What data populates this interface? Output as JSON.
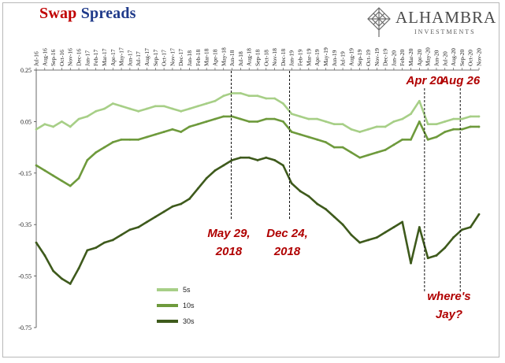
{
  "header": {
    "title_part1": "Swap",
    "title_part2": "Spreads",
    "logo_name": "ALHAMBRA",
    "logo_sub": "INVESTMENTS",
    "logo_icon": "alhambra-star-icon"
  },
  "colors": {
    "title_red": "#c00000",
    "title_blue": "#1f3a8a",
    "annotation_red": "#b00000",
    "series_5s": "#a7cf87",
    "series_10s": "#6e9a3c",
    "series_30s": "#3e5a1c"
  },
  "chart_data": {
    "type": "line",
    "title": "Swap Spreads",
    "x_tick_labels": [
      "Jul-16",
      "Aug-16",
      "Sep-16",
      "Oct-16",
      "Nov-16",
      "Dec-16",
      "Jan-17",
      "Feb-17",
      "Mar-17",
      "Apr-17",
      "May-17",
      "Jun-17",
      "Jul-17",
      "Aug-17",
      "Sep-17",
      "Oct-17",
      "Nov-17",
      "Dec-17",
      "Jan-18",
      "Feb-18",
      "Mar-18",
      "Apr-18",
      "May-18",
      "Jun-18",
      "Jul-18",
      "Aug-18",
      "Sep-18",
      "Oct-18",
      "Nov-18",
      "Dec-18",
      "Jan-19",
      "Feb-19",
      "Mar-19",
      "Apr-19",
      "May-19",
      "Jun-19",
      "Jul-19",
      "Aug-19",
      "Sep-19",
      "Oct-19",
      "Nov-19",
      "Dec-19",
      "Jan-20",
      "Feb-20",
      "Mar-20",
      "Apr-20",
      "May-20",
      "Jun-20",
      "Jul-20",
      "Aug-20",
      "Sep-20",
      "Oct-20",
      "Nov-20"
    ],
    "ylim": [
      -0.75,
      0.25
    ],
    "y_ticks": [
      "0.25",
      "0.05",
      "-0.15",
      "-0.35",
      "-0.55",
      "-0.75"
    ],
    "y_tick_values": [
      0.25,
      0.05,
      -0.15,
      -0.35,
      -0.55,
      -0.75
    ],
    "x": [
      "Jul-16",
      "Aug-16",
      "Sep-16",
      "Oct-16",
      "Nov-16",
      "Dec-16",
      "Jan-17",
      "Feb-17",
      "Mar-17",
      "Apr-17",
      "May-17",
      "Jun-17",
      "Jul-17",
      "Aug-17",
      "Sep-17",
      "Oct-17",
      "Nov-17",
      "Dec-17",
      "Jan-18",
      "Feb-18",
      "Mar-18",
      "Apr-18",
      "May-18",
      "Jun-18",
      "Jul-18",
      "Aug-18",
      "Sep-18",
      "Oct-18",
      "Nov-18",
      "Dec-18",
      "Jan-19",
      "Feb-19",
      "Mar-19",
      "Apr-19",
      "May-19",
      "Jun-19",
      "Jul-19",
      "Aug-19",
      "Sep-19",
      "Oct-19",
      "Nov-19",
      "Dec-19",
      "Jan-20",
      "Feb-20",
      "Mar-20",
      "Apr-20",
      "May-20",
      "Jun-20",
      "Jul-20",
      "Aug-20",
      "Sep-20",
      "Oct-20",
      "Nov-20"
    ],
    "series": [
      {
        "name": "5s",
        "values": [
          0.02,
          0.04,
          0.03,
          0.05,
          0.03,
          0.06,
          0.07,
          0.09,
          0.1,
          0.12,
          0.11,
          0.1,
          0.09,
          0.1,
          0.11,
          0.11,
          0.1,
          0.09,
          0.1,
          0.11,
          0.12,
          0.13,
          0.15,
          0.16,
          0.16,
          0.15,
          0.15,
          0.14,
          0.14,
          0.12,
          0.08,
          0.07,
          0.06,
          0.06,
          0.05,
          0.04,
          0.04,
          0.02,
          0.01,
          0.02,
          0.03,
          0.03,
          0.05,
          0.06,
          0.08,
          0.13,
          0.04,
          0.04,
          0.05,
          0.06,
          0.06,
          0.07,
          0.07
        ]
      },
      {
        "name": "10s",
        "values": [
          -0.12,
          -0.14,
          -0.16,
          -0.18,
          -0.2,
          -0.17,
          -0.1,
          -0.07,
          -0.05,
          -0.03,
          -0.02,
          -0.02,
          -0.02,
          -0.01,
          0.0,
          0.01,
          0.02,
          0.01,
          0.03,
          0.04,
          0.05,
          0.06,
          0.07,
          0.07,
          0.06,
          0.05,
          0.05,
          0.06,
          0.06,
          0.05,
          0.01,
          0.0,
          -0.01,
          -0.02,
          -0.03,
          -0.05,
          -0.05,
          -0.07,
          -0.09,
          -0.08,
          -0.07,
          -0.06,
          -0.04,
          -0.02,
          -0.02,
          0.05,
          -0.02,
          -0.01,
          0.01,
          0.02,
          0.02,
          0.03,
          0.03
        ]
      },
      {
        "name": "30s",
        "values": [
          -0.42,
          -0.47,
          -0.53,
          -0.56,
          -0.58,
          -0.52,
          -0.45,
          -0.44,
          -0.42,
          -0.41,
          -0.39,
          -0.37,
          -0.36,
          -0.34,
          -0.32,
          -0.3,
          -0.28,
          -0.27,
          -0.25,
          -0.21,
          -0.17,
          -0.14,
          -0.12,
          -0.1,
          -0.09,
          -0.09,
          -0.1,
          -0.09,
          -0.1,
          -0.12,
          -0.19,
          -0.22,
          -0.24,
          -0.27,
          -0.29,
          -0.32,
          -0.35,
          -0.39,
          -0.42,
          -0.41,
          -0.4,
          -0.38,
          -0.36,
          -0.34,
          -0.5,
          -0.36,
          -0.48,
          -0.47,
          -0.44,
          -0.4,
          -0.37,
          -0.36,
          -0.31
        ]
      }
    ],
    "markers": [
      {
        "label_line1": "May 29,",
        "label_line2": "2018",
        "x": "May-18",
        "x_offset": 0.9
      },
      {
        "label_line1": "Dec 24,",
        "label_line2": "2018",
        "x": "Dec-18",
        "x_offset": 0.75
      },
      {
        "label_line1": "Apr 20",
        "label_line2": "",
        "x": "Apr-20",
        "x_offset": 0.6
      },
      {
        "label_line1": "Aug 26",
        "label_line2": "",
        "x": "Aug-20",
        "x_offset": 0.8
      }
    ],
    "note_line1": "where's",
    "note_line2": "Jay?",
    "legend": [
      "5s",
      "10s",
      "30s"
    ],
    "legend_position": "bottom-left"
  }
}
